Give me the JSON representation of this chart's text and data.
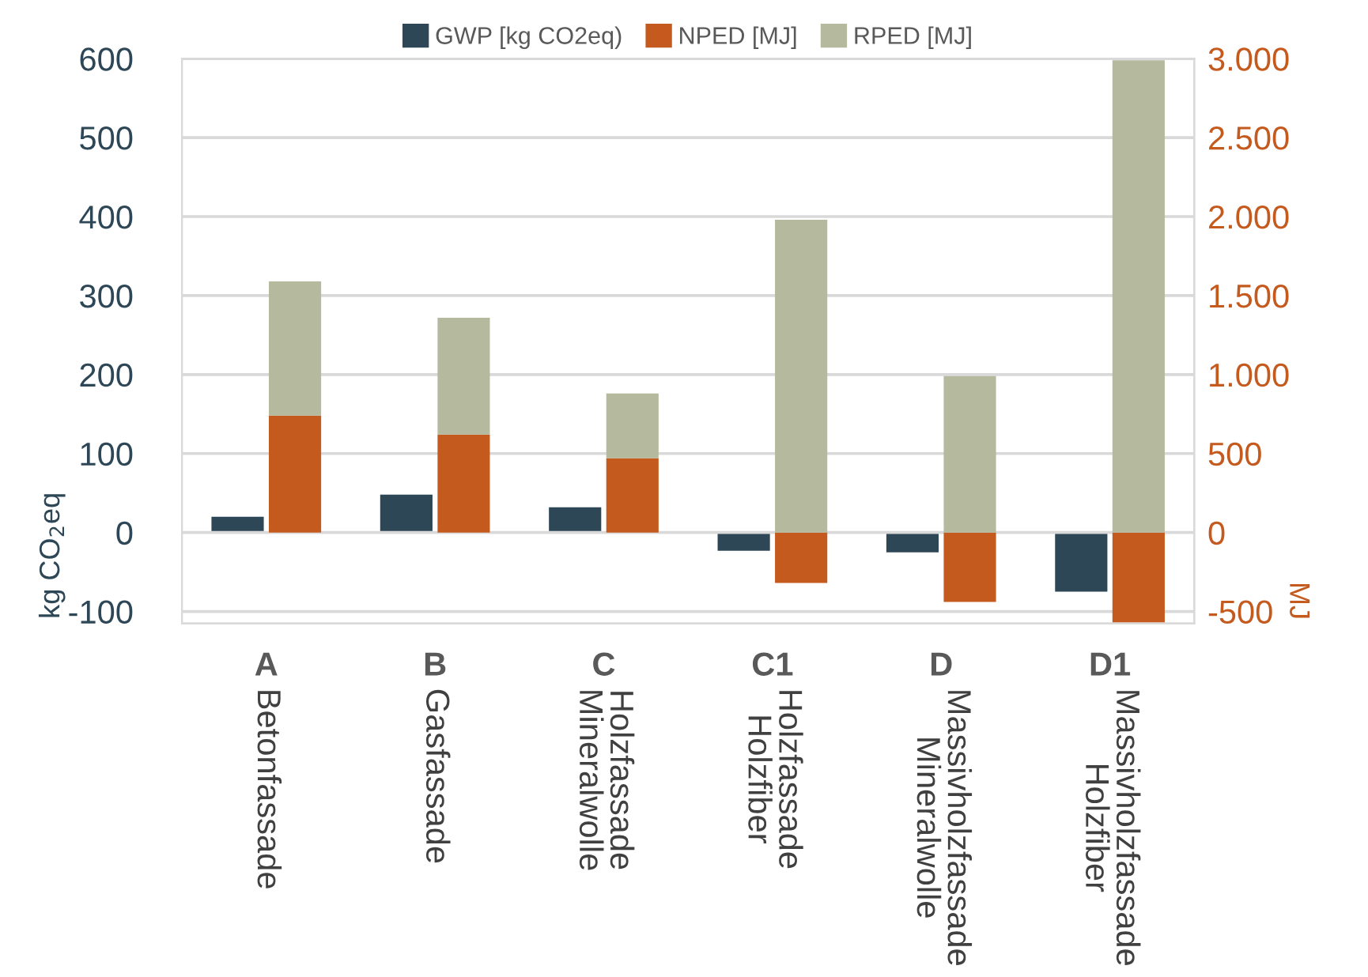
{
  "chart_data": {
    "type": "bar",
    "categories": [
      "A\nBetonfassade",
      "B\nGasfassade",
      "C\nHolzfassade\nMineralwolle",
      "C1\nHolzfassade\nHolzfiber",
      "D\nMassivholzfassade\nMineralwolle",
      "D1\nMassivholzfassade\nHolzfiber"
    ],
    "series": [
      {
        "name": "GWP [kg CO2eq)",
        "color": "#2e4756",
        "values": [
          20,
          48,
          32,
          -23,
          -25,
          -75
        ]
      },
      {
        "name": "NPED [MJ]",
        "color": "#c55a1e",
        "axis": "y2",
        "values": [
          740,
          620,
          470,
          -320,
          -440,
          -570
        ]
      },
      {
        "name": "RPED [MJ]",
        "color": "#b5b99e",
        "axis": "y2",
        "values": [
          850,
          740,
          410,
          1980,
          990,
          2990
        ]
      }
    ],
    "stacked": true,
    "ylabel": "kg CO$_{2}$eq",
    "y2label": "MJ",
    "ylim": [
      -115,
      600
    ],
    "yticks": [
      -100,
      0,
      100,
      200,
      300,
      400,
      500,
      600
    ],
    "y2lim": [
      -575,
      3000
    ],
    "y2ticks": [
      -500,
      0,
      500,
      {
        "value": 1000,
        "label": "1.000"
      },
      {
        "value": 1500,
        "label": "1.500"
      },
      {
        "value": 2000,
        "label": "2.000"
      },
      {
        "value": 2500,
        "label": "2.500"
      },
      {
        "value": 3000,
        "label": "3.000"
      }
    ],
    "grid": "y",
    "legend": "top"
  }
}
